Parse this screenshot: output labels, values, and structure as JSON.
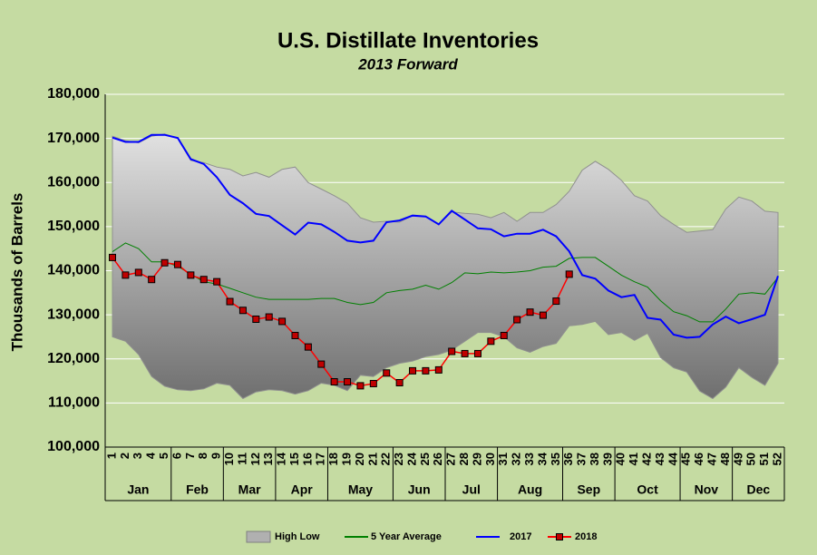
{
  "chart_data": {
    "type": "line",
    "title": "U.S. Distillate Inventories",
    "subtitle": "2013 Forward",
    "y_label": "Thousands of Barrels",
    "categories": [
      1,
      2,
      3,
      4,
      5,
      6,
      7,
      8,
      9,
      10,
      11,
      12,
      13,
      14,
      15,
      16,
      17,
      18,
      19,
      20,
      21,
      22,
      23,
      24,
      25,
      26,
      27,
      28,
      29,
      30,
      31,
      32,
      33,
      34,
      35,
      36,
      37,
      38,
      39,
      40,
      41,
      42,
      43,
      44,
      45,
      46,
      47,
      48,
      49,
      50,
      51,
      52
    ],
    "months": [
      {
        "label": "Jan",
        "end": 5
      },
      {
        "label": "Feb",
        "end": 9
      },
      {
        "label": "Mar",
        "end": 13
      },
      {
        "label": "Apr",
        "end": 17
      },
      {
        "label": "May",
        "end": 22
      },
      {
        "label": "Jun",
        "end": 26
      },
      {
        "label": "Jul",
        "end": 30
      },
      {
        "label": "Aug",
        "end": 35
      },
      {
        "label": "Sep",
        "end": 39
      },
      {
        "label": "Oct",
        "end": 44
      },
      {
        "label": "Nov",
        "end": 48
      },
      {
        "label": "Dec",
        "end": 52
      }
    ],
    "band": {
      "name": "High Low",
      "color": "#b0b0b0",
      "high": [
        170500,
        169500,
        169000,
        170500,
        171000,
        170000,
        165000,
        164500,
        163500,
        163000,
        161500,
        162300,
        161200,
        163000,
        163500,
        160000,
        158500,
        157000,
        155300,
        152000,
        151000,
        151200,
        151000,
        152500,
        152300,
        150500,
        153300,
        153000,
        152800,
        152000,
        153200,
        151200,
        153200,
        153200,
        155000,
        158000,
        162800,
        164800,
        163000,
        160500,
        157000,
        155800,
        152500,
        150500,
        148700,
        149000,
        149300,
        154000,
        156700,
        155800,
        153500,
        153200
      ],
      "low": [
        125000,
        124000,
        121000,
        116000,
        113800,
        113000,
        112800,
        113200,
        114500,
        114000,
        111000,
        112500,
        113000,
        112800,
        112000,
        112800,
        114500,
        114000,
        112800,
        116300,
        116000,
        118000,
        119000,
        119500,
        120500,
        121000,
        122000,
        124000,
        126000,
        126000,
        125000,
        122500,
        121500,
        122800,
        123500,
        127500,
        127800,
        128500,
        125500,
        126000,
        124200,
        125800,
        120300,
        118000,
        117000,
        112700,
        111000,
        113600,
        118000,
        115800,
        114000,
        119000
      ]
    },
    "series": [
      {
        "name": "5 Year Average",
        "color": "#008000",
        "marker": false,
        "values": [
          144300,
          146300,
          145000,
          142000,
          142000,
          141000,
          139200,
          137500,
          137000,
          136000,
          135000,
          134000,
          133500,
          133500,
          133500,
          133500,
          133700,
          133700,
          132800,
          132300,
          132800,
          135000,
          135500,
          135800,
          136700,
          135800,
          137300,
          139500,
          139300,
          139700,
          139500,
          139700,
          140000,
          140800,
          141000,
          142800,
          143000,
          143000,
          141000,
          139000,
          137500,
          136300,
          133200,
          130700,
          129800,
          128400,
          128400,
          131300,
          134700,
          135000,
          134700,
          138500
        ]
      },
      {
        "name": "2017",
        "color": "#0000ff",
        "marker": false,
        "values": [
          170200,
          169200,
          169200,
          170800,
          170800,
          170100,
          165300,
          164200,
          161200,
          157200,
          155300,
          152900,
          152400,
          150300,
          148200,
          150900,
          150500,
          148800,
          146800,
          146400,
          146800,
          151000,
          151400,
          152500,
          152300,
          150500,
          153600,
          151600,
          149600,
          149400,
          147800,
          148400,
          148400,
          149300,
          147800,
          144400,
          139000,
          138200,
          135500,
          134000,
          134500,
          129300,
          128900,
          125500,
          124800,
          125000,
          127800,
          129600,
          128100,
          129000,
          130000,
          138800
        ]
      },
      {
        "name": "2018",
        "color": "#ff0000",
        "marker": true,
        "values": [
          143000,
          139000,
          139600,
          138000,
          141800,
          141400,
          139000,
          138000,
          137500,
          133000,
          131000,
          129000,
          129500,
          128500,
          125300,
          122700,
          118800,
          114800,
          114800,
          113900,
          114400,
          116800,
          114600,
          117300,
          117300,
          117500,
          121700,
          121200,
          121200,
          124000,
          125300,
          128900,
          130600,
          129900,
          133100,
          139200,
          null,
          null,
          null,
          null,
          null,
          null,
          null,
          null,
          null,
          null,
          null,
          null,
          null,
          null,
          null,
          null
        ]
      }
    ],
    "ylim": [
      100000,
      180000
    ],
    "yticks": [
      {
        "value": 100000,
        "label": "100,000"
      },
      {
        "value": 110000,
        "label": "110,000"
      },
      {
        "value": 120000,
        "label": "120,000"
      },
      {
        "value": 130000,
        "label": "130,000"
      },
      {
        "value": 140000,
        "label": "140,000"
      },
      {
        "value": 150000,
        "label": "150,000"
      },
      {
        "value": 160000,
        "label": "160,000"
      },
      {
        "value": 170000,
        "label": "170,000"
      },
      {
        "value": 180000,
        "label": "180,000"
      }
    ],
    "grid": true
  }
}
